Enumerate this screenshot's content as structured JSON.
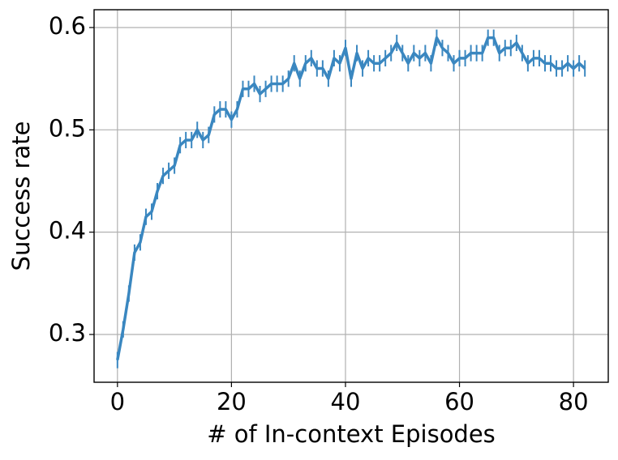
{
  "chart_data": {
    "type": "line",
    "x_label": "# of In-context Episodes",
    "y_label": "Success rate",
    "x": [
      0,
      1,
      2,
      3,
      4,
      5,
      6,
      7,
      8,
      9,
      10,
      11,
      12,
      13,
      14,
      15,
      16,
      17,
      18,
      19,
      20,
      21,
      22,
      23,
      24,
      25,
      26,
      27,
      28,
      29,
      30,
      31,
      32,
      33,
      34,
      35,
      36,
      37,
      38,
      39,
      40,
      41,
      42,
      43,
      44,
      45,
      46,
      47,
      48,
      49,
      50,
      51,
      52,
      53,
      54,
      55,
      56,
      57,
      58,
      59,
      60,
      61,
      62,
      63,
      64,
      65,
      66,
      67,
      68,
      69,
      70,
      71,
      72,
      73,
      74,
      75,
      76,
      77,
      78,
      79,
      80,
      81,
      82
    ],
    "values": [
      0.275,
      0.305,
      0.34,
      0.38,
      0.39,
      0.415,
      0.42,
      0.44,
      0.455,
      0.46,
      0.465,
      0.485,
      0.49,
      0.49,
      0.5,
      0.49,
      0.495,
      0.515,
      0.52,
      0.52,
      0.51,
      0.52,
      0.54,
      0.54,
      0.545,
      0.535,
      0.54,
      0.545,
      0.545,
      0.545,
      0.55,
      0.565,
      0.55,
      0.565,
      0.57,
      0.56,
      0.56,
      0.55,
      0.57,
      0.565,
      0.58,
      0.55,
      0.575,
      0.56,
      0.57,
      0.565,
      0.565,
      0.57,
      0.575,
      0.585,
      0.575,
      0.565,
      0.575,
      0.57,
      0.575,
      0.565,
      0.59,
      0.58,
      0.575,
      0.565,
      0.57,
      0.57,
      0.575,
      0.575,
      0.575,
      0.59,
      0.59,
      0.575,
      0.58,
      0.58,
      0.585,
      0.575,
      0.565,
      0.57,
      0.57,
      0.565,
      0.565,
      0.56,
      0.56,
      0.565,
      0.56,
      0.565,
      0.56
    ],
    "errors": [
      0.008,
      0.008,
      0.008,
      0.008,
      0.008,
      0.008,
      0.008,
      0.008,
      0.008,
      0.008,
      0.008,
      0.008,
      0.008,
      0.008,
      0.008,
      0.008,
      0.008,
      0.008,
      0.008,
      0.008,
      0.008,
      0.008,
      0.008,
      0.008,
      0.008,
      0.008,
      0.008,
      0.008,
      0.008,
      0.008,
      0.008,
      0.008,
      0.008,
      0.008,
      0.008,
      0.008,
      0.008,
      0.008,
      0.008,
      0.008,
      0.008,
      0.008,
      0.008,
      0.008,
      0.008,
      0.008,
      0.008,
      0.008,
      0.008,
      0.008,
      0.008,
      0.008,
      0.008,
      0.008,
      0.008,
      0.008,
      0.008,
      0.008,
      0.008,
      0.008,
      0.008,
      0.008,
      0.008,
      0.008,
      0.008,
      0.008,
      0.008,
      0.008,
      0.008,
      0.008,
      0.008,
      0.008,
      0.008,
      0.008,
      0.008,
      0.008,
      0.008,
      0.008,
      0.008,
      0.008,
      0.008,
      0.008,
      0.008
    ],
    "color": "#3a87c0",
    "xlim": [
      -4.1,
      86.1
    ],
    "ylim": [
      0.2533,
      0.6174
    ],
    "xticks": [
      0,
      20,
      40,
      60,
      80
    ],
    "yticks": [
      0.3,
      0.4,
      0.5,
      0.6
    ],
    "grid": true
  }
}
